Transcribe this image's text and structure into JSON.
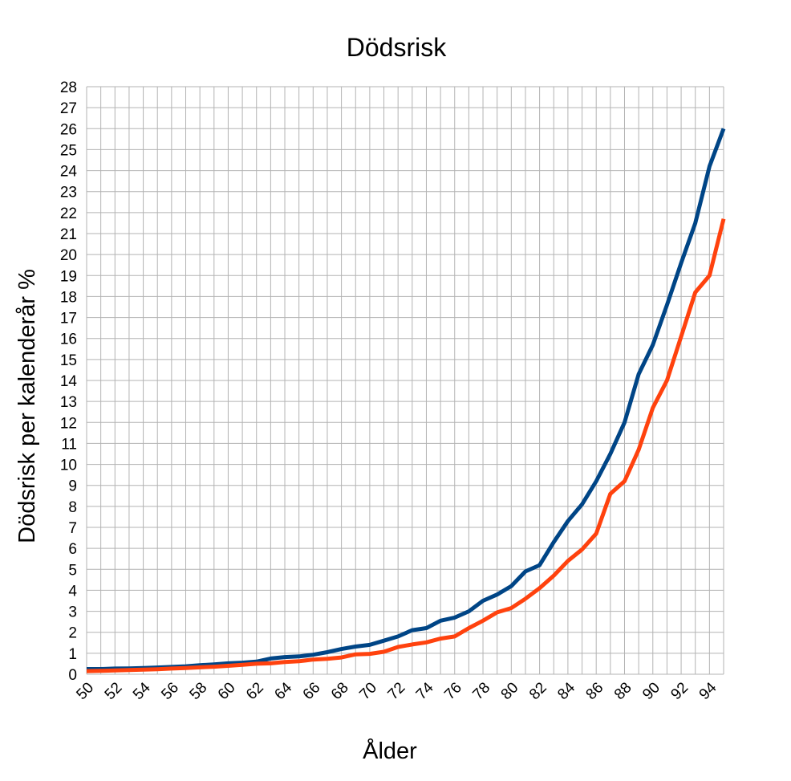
{
  "chart_data": {
    "type": "line",
    "title": "Dödsrisk",
    "xlabel": "Ålder",
    "ylabel": "Dödsrisk per kalenderår %",
    "x": [
      50,
      51,
      52,
      53,
      54,
      55,
      56,
      57,
      58,
      59,
      60,
      61,
      62,
      63,
      64,
      65,
      66,
      67,
      68,
      69,
      70,
      71,
      72,
      73,
      74,
      75,
      76,
      77,
      78,
      79,
      80,
      81,
      82,
      83,
      84,
      85,
      86,
      87,
      88,
      89,
      90,
      91,
      92,
      93,
      94,
      95
    ],
    "x_tick_labels": [
      "50",
      "52",
      "54",
      "56",
      "58",
      "60",
      "62",
      "64",
      "66",
      "68",
      "70",
      "72",
      "74",
      "76",
      "78",
      "80",
      "82",
      "84",
      "86",
      "88",
      "90",
      "92",
      "94"
    ],
    "y_tick_labels": [
      "0",
      "1",
      "2",
      "3",
      "4",
      "5",
      "6",
      "7",
      "8",
      "9",
      "10",
      "11",
      "12",
      "13",
      "14",
      "15",
      "16",
      "17",
      "18",
      "19",
      "20",
      "21",
      "22",
      "23",
      "24",
      "25",
      "26",
      "27",
      "28"
    ],
    "xlim": [
      50,
      95
    ],
    "ylim": [
      0,
      28
    ],
    "grid": true,
    "series": [
      {
        "color": "#004586",
        "values": [
          0.25,
          0.25,
          0.27,
          0.28,
          0.3,
          0.32,
          0.35,
          0.38,
          0.43,
          0.47,
          0.52,
          0.55,
          0.6,
          0.75,
          0.82,
          0.85,
          0.93,
          1.05,
          1.2,
          1.32,
          1.4,
          1.6,
          1.8,
          2.1,
          2.2,
          2.55,
          2.7,
          3.0,
          3.5,
          3.8,
          4.2,
          4.9,
          5.2,
          6.3,
          7.3,
          8.1,
          9.2,
          10.5,
          12.0,
          14.3,
          15.7,
          17.6,
          19.6,
          21.5,
          24.2,
          26.0
        ]
      },
      {
        "color": "#ff420e",
        "values": [
          0.15,
          0.16,
          0.18,
          0.2,
          0.22,
          0.24,
          0.27,
          0.3,
          0.33,
          0.36,
          0.4,
          0.45,
          0.5,
          0.52,
          0.58,
          0.62,
          0.7,
          0.74,
          0.8,
          0.95,
          0.97,
          1.07,
          1.3,
          1.42,
          1.52,
          1.7,
          1.8,
          2.2,
          2.55,
          2.95,
          3.15,
          3.6,
          4.1,
          4.7,
          5.4,
          5.95,
          6.7,
          8.6,
          9.2,
          10.7,
          12.7,
          14.0,
          16.1,
          18.2,
          19.0,
          21.7
        ]
      }
    ]
  }
}
